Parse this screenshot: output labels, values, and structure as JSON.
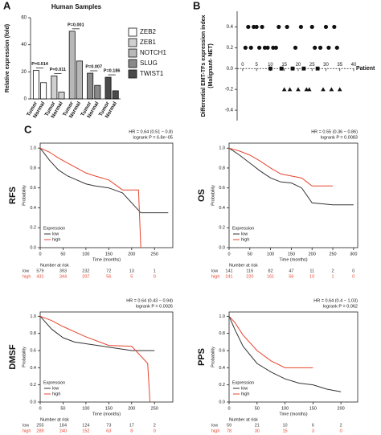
{
  "chart_data": [
    {
      "type": "bar",
      "panel": "A",
      "title": "Human Samples",
      "y_label": "Relative expression (fold)",
      "categories": [
        "Tumor",
        "Normal"
      ],
      "series": [
        {
          "name": "ZEB2",
          "color": "#ffffff",
          "values": [
            21,
            12
          ]
        },
        {
          "name": "ZEB1",
          "color": "#d0d0d0",
          "values": [
            17,
            5
          ]
        },
        {
          "name": "NOTCH1",
          "color": "#b8b8b8",
          "values": [
            50,
            28
          ]
        },
        {
          "name": "SLUG",
          "color": "#8a8a8a",
          "values": [
            19,
            10
          ]
        },
        {
          "name": "TWIST1",
          "color": "#4a4a4a",
          "values": [
            16,
            6
          ]
        }
      ],
      "annotations": [
        "P=0.014",
        "P=0.011",
        "P=0.001",
        "P=0.007",
        "P=0.186"
      ],
      "ylim": [
        0,
        60
      ],
      "yticks": [
        0,
        20,
        40,
        60
      ]
    },
    {
      "type": "scatter",
      "panel": "B",
      "y_label": "Differential EMT-TFs expression index",
      "y_label_2": "(Malignant- NET)",
      "x_label": "Patient",
      "x": [
        1,
        2,
        3,
        4,
        5,
        6,
        7,
        8,
        9,
        10,
        11,
        12,
        13,
        14,
        15,
        16,
        17,
        18,
        19,
        20,
        21,
        22,
        23,
        24,
        25,
        26,
        27,
        28,
        29,
        30,
        31,
        32,
        33,
        34,
        35
      ],
      "values": [
        0.2,
        0.4,
        0.2,
        0.4,
        0.4,
        0.2,
        0.4,
        0.2,
        0.2,
        0,
        0.2,
        0.2,
        0.4,
        0,
        -0.2,
        0.4,
        -0.2,
        0,
        0.2,
        -0.2,
        0.4,
        0,
        -0.2,
        -0.2,
        0.4,
        0.2,
        0,
        0.2,
        -0.2,
        0.4,
        0.2,
        -0.2,
        0.4,
        0.2,
        -0.2
      ],
      "color": "#111111",
      "xlim": [
        -2,
        40
      ],
      "xticks": [
        0,
        5,
        10,
        15,
        20,
        25,
        30,
        35,
        40
      ],
      "ylim": [
        -0.5,
        0.55
      ],
      "yticks": [
        -0.4,
        -0.2,
        {
          "value": 0,
          "label": "0.0"
        },
        0.2,
        0.4
      ]
    },
    {
      "type": "survival",
      "panel": "C",
      "endpoint": "RFS",
      "hr": "HR = 0.64 (0.51 − 0.8)",
      "logrank": "logrank P = 6.8e−05",
      "y_label": "Probability",
      "x_label": "Time (months)",
      "legend_title": "Expression",
      "risk_title": "Number at risk",
      "xlim": [
        0,
        290
      ],
      "xticks": [
        0,
        50,
        100,
        150,
        200,
        250
      ],
      "ylim": [
        0,
        1.05
      ],
      "yticks": [
        {
          "value": 0,
          "label": "0.0"
        },
        0.2,
        0.4,
        0.6,
        0.8,
        {
          "value": 1,
          "label": "1.0"
        }
      ],
      "series": [
        {
          "name": "low",
          "color": "#333333",
          "x": [
            0,
            20,
            40,
            60,
            80,
            100,
            120,
            150,
            180,
            220,
            280
          ],
          "values": [
            1,
            0.88,
            0.78,
            0.72,
            0.68,
            0.64,
            0.62,
            0.6,
            0.55,
            0.35,
            0.35
          ],
          "at_risk": [
            579,
            393,
            232,
            72,
            13,
            1
          ]
        },
        {
          "name": "high",
          "color": "#e8442e",
          "x": [
            0,
            20,
            40,
            60,
            80,
            100,
            120,
            150,
            180,
            215,
            220
          ],
          "values": [
            1,
            0.96,
            0.9,
            0.85,
            0.8,
            0.75,
            0.72,
            0.68,
            0.58,
            0.58,
            0
          ],
          "at_risk": [
            431,
            344,
            207,
            56,
            5,
            0
          ]
        }
      ]
    },
    {
      "type": "survival",
      "endpoint": "OS",
      "hr": "HR = 0.55 (0.36 − 0.86)",
      "logrank": "logrank P = 0.0083",
      "y_label": "Probability",
      "x_label": "Time (months)",
      "legend_title": "Expression",
      "risk_title": "Number at risk",
      "xlim": [
        0,
        310
      ],
      "xticks": [
        0,
        50,
        100,
        150,
        200,
        250,
        300
      ],
      "ylim": [
        0,
        1.05
      ],
      "yticks": [
        {
          "value": 0,
          "label": "0.0"
        },
        0.2,
        0.4,
        0.6,
        0.8,
        {
          "value": 1,
          "label": "1.0"
        }
      ],
      "series": [
        {
          "name": "low",
          "color": "#333333",
          "x": [
            0,
            25,
            50,
            75,
            100,
            125,
            150,
            175,
            200,
            250,
            300
          ],
          "values": [
            1,
            0.93,
            0.85,
            0.77,
            0.7,
            0.66,
            0.65,
            0.6,
            0.45,
            0.43,
            0.43
          ],
          "at_risk": [
            141,
            116,
            82,
            47,
            11,
            2,
            0
          ]
        },
        {
          "name": "high",
          "color": "#e8442e",
          "x": [
            0,
            25,
            50,
            75,
            100,
            125,
            150,
            175,
            200,
            250
          ],
          "values": [
            1,
            0.97,
            0.93,
            0.87,
            0.8,
            0.74,
            0.72,
            0.7,
            0.62,
            0.62
          ],
          "at_risk": [
            241,
            220,
            161,
            56,
            10,
            1,
            0
          ]
        }
      ]
    },
    {
      "type": "survival",
      "endpoint": "DMSF",
      "hr": "HR = 0.64 (0.43 − 0.94)",
      "logrank": "logrank P = 0.0026",
      "y_label": "Probability",
      "x_label": "Time (months)",
      "legend_title": "Expression",
      "risk_title": "Number at risk",
      "xlim": [
        0,
        290
      ],
      "xticks": [
        0,
        50,
        100,
        150,
        200,
        250
      ],
      "ylim": [
        0,
        1.05
      ],
      "yticks": [
        {
          "value": 0,
          "label": "0.0"
        },
        0.2,
        0.4,
        0.6,
        0.8,
        {
          "value": 1,
          "label": "1.0"
        }
      ],
      "series": [
        {
          "name": "low",
          "color": "#333333",
          "x": [
            0,
            25,
            50,
            75,
            100,
            150,
            200,
            250
          ],
          "values": [
            1,
            0.85,
            0.75,
            0.7,
            0.68,
            0.64,
            0.6,
            0.6
          ],
          "at_risk": [
            255,
            184,
            124,
            73,
            17,
            2
          ]
        },
        {
          "name": "high",
          "color": "#e8442e",
          "x": [
            0,
            25,
            50,
            75,
            100,
            150,
            200,
            235,
            240
          ],
          "values": [
            1,
            0.95,
            0.88,
            0.82,
            0.76,
            0.66,
            0.65,
            0.45,
            0
          ],
          "at_risk": [
            289,
            240,
            152,
            63,
            8,
            0
          ]
        }
      ]
    },
    {
      "type": "survival",
      "endpoint": "PPS",
      "hr": "HR = 0.64 (0.4 − 1.03)",
      "logrank": "logrank P = 0.062",
      "y_label": "Probability",
      "x_label": "Time (months)",
      "legend_title": "Expression",
      "risk_title": "Number at risk",
      "xlim": [
        0,
        230
      ],
      "xticks": [
        0,
        50,
        100,
        150,
        200
      ],
      "ylim": [
        0,
        1.05
      ],
      "yticks": [
        {
          "value": 0,
          "label": "0.0"
        },
        0.2,
        0.4,
        0.6,
        0.8,
        {
          "value": 1,
          "label": "1.0"
        }
      ],
      "series": [
        {
          "name": "low",
          "color": "#333333",
          "x": [
            0,
            10,
            25,
            50,
            75,
            100,
            125,
            150,
            175,
            200
          ],
          "values": [
            1,
            0.85,
            0.65,
            0.45,
            0.35,
            0.27,
            0.22,
            0.2,
            0.15,
            0.12
          ],
          "at_risk": [
            59,
            21,
            10,
            6,
            2
          ]
        },
        {
          "name": "high",
          "color": "#e8442e",
          "x": [
            0,
            10,
            25,
            50,
            75,
            100,
            125,
            150
          ],
          "values": [
            1,
            0.93,
            0.78,
            0.6,
            0.48,
            0.4,
            0.4,
            0.4
          ],
          "at_risk": [
            78,
            30,
            15,
            3,
            0
          ]
        }
      ]
    }
  ]
}
